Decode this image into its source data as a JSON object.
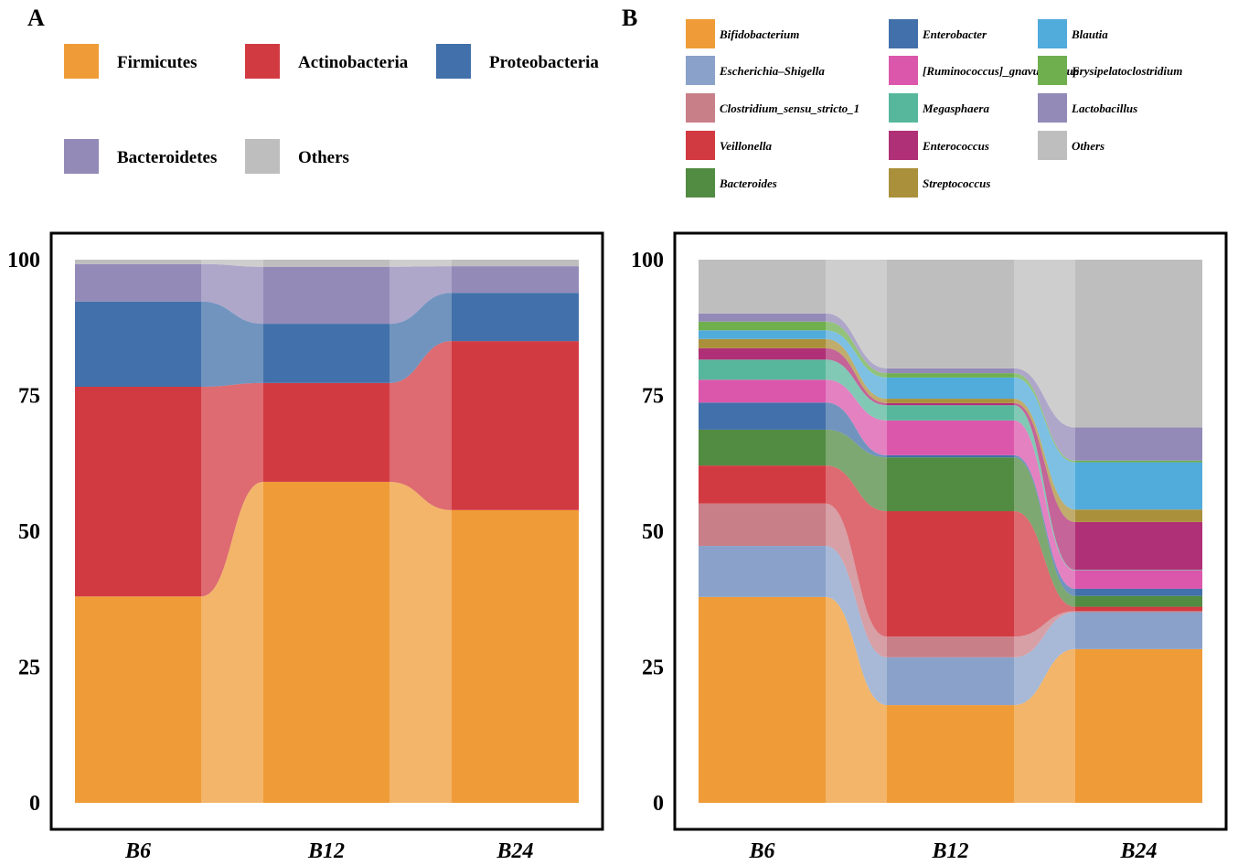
{
  "chart_data": [
    {
      "type": "bar",
      "subtype": "stacked-alluvial",
      "panel_label": "A",
      "categories": [
        "B6",
        "B12",
        "B24"
      ],
      "ylim": [
        0,
        100
      ],
      "yticks": [
        "0",
        "25",
        "50",
        "75",
        "100"
      ],
      "legend_position": "top",
      "series": [
        {
          "name": "Firmicutes",
          "color": "#EF9C38",
          "values": [
            38.0,
            59.1,
            53.9
          ]
        },
        {
          "name": "Actinobacteria",
          "color": "#D23A42",
          "values": [
            38.6,
            18.2,
            31.1
          ]
        },
        {
          "name": "Proteobacteria",
          "color": "#4270AA",
          "values": [
            15.7,
            10.9,
            8.9
          ]
        },
        {
          "name": "Bacteroidetes",
          "color": "#938AB8",
          "values": [
            6.9,
            10.5,
            4.9
          ]
        },
        {
          "name": "Others",
          "color": "#BEBEBE",
          "values": [
            0.8,
            1.3,
            1.2
          ]
        }
      ]
    },
    {
      "type": "bar",
      "subtype": "stacked-alluvial",
      "panel_label": "B",
      "categories": [
        "B6",
        "B12",
        "B24"
      ],
      "ylim": [
        0,
        100
      ],
      "yticks": [
        "0",
        "25",
        "50",
        "75",
        "100"
      ],
      "legend_position": "top",
      "series": [
        {
          "name": "Bifidobacterium",
          "color": "#EF9C38",
          "values": [
            37.9,
            18.0,
            28.3
          ]
        },
        {
          "name": "Escherichia–Shigella",
          "color": "#8AA2CA",
          "values": [
            9.4,
            8.8,
            6.8
          ]
        },
        {
          "name": "Clostridium_sensu_stricto_1",
          "color": "#C97F88",
          "values": [
            7.8,
            3.8,
            0.2
          ]
        },
        {
          "name": "Veillonella",
          "color": "#D23A42",
          "values": [
            7.0,
            23.1,
            0.8
          ]
        },
        {
          "name": "Bacteroides",
          "color": "#528B42",
          "values": [
            6.6,
            9.9,
            2.0
          ]
        },
        {
          "name": "Enterobacter",
          "color": "#4270AA",
          "values": [
            5.0,
            0.4,
            1.3
          ]
        },
        {
          "name": "[Ruminococcus]_gnavus_group",
          "color": "#DB57AC",
          "values": [
            4.2,
            6.4,
            3.4
          ]
        },
        {
          "name": "Megasphaera",
          "color": "#57B79C",
          "values": [
            3.7,
            2.8,
            0.1
          ]
        },
        {
          "name": "Enterococcus",
          "color": "#B03077",
          "values": [
            2.1,
            0.4,
            8.8
          ]
        },
        {
          "name": "Streptococcus",
          "color": "#AB903B",
          "values": [
            1.7,
            0.8,
            2.3
          ]
        },
        {
          "name": "Blautia",
          "color": "#51ABDB",
          "values": [
            1.6,
            3.9,
            8.7
          ]
        },
        {
          "name": "Erysipelatoclostridium",
          "color": "#6FAF4E",
          "values": [
            1.6,
            0.8,
            0.3
          ]
        },
        {
          "name": "Lactobacillus",
          "color": "#938AB8",
          "values": [
            1.5,
            0.9,
            6.1
          ]
        },
        {
          "name": "Others",
          "color": "#BEBEBE",
          "values": [
            9.9,
            20.0,
            30.9
          ]
        }
      ]
    }
  ]
}
